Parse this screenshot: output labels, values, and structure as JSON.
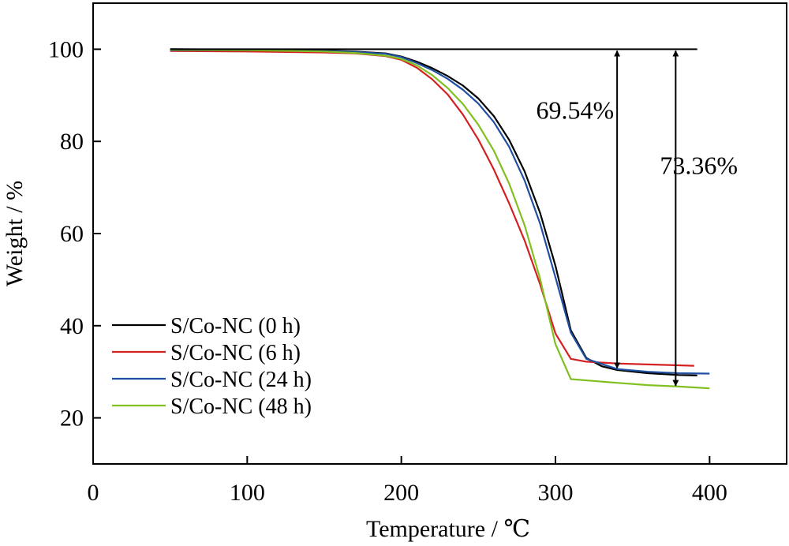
{
  "chart_data": {
    "type": "line",
    "xlabel": "Temperature / ℃",
    "ylabel": "Weight / %",
    "xlim": [
      0,
      450
    ],
    "ylim": [
      10,
      110
    ],
    "xticks": [
      0,
      100,
      200,
      300,
      400
    ],
    "yticks": [
      20,
      40,
      60,
      80,
      100
    ],
    "grid": false,
    "legend_position": "bottom-left",
    "reference_line": {
      "y": 100,
      "x_start": 50,
      "x_end": 392,
      "color": "#000000"
    },
    "series": [
      {
        "name": "S/Co-NC (0 h)",
        "color": "#000000",
        "x": [
          50,
          100,
          150,
          170,
          190,
          200,
          210,
          220,
          230,
          240,
          250,
          260,
          270,
          280,
          290,
          300,
          305,
          310,
          320,
          330,
          340,
          360,
          380,
          392
        ],
        "y": [
          100,
          99.9,
          99.7,
          99.5,
          99.1,
          98.4,
          97.3,
          95.9,
          94.2,
          92.1,
          89.3,
          85.5,
          80.3,
          73.5,
          64.5,
          53,
          46,
          39,
          33,
          31.2,
          30.4,
          29.7,
          29.3,
          29.2
        ]
      },
      {
        "name": "S/Co-NC (6 h)",
        "color": "#d42020",
        "x": [
          50,
          100,
          150,
          170,
          190,
          200,
          210,
          220,
          230,
          240,
          250,
          260,
          270,
          280,
          290,
          300,
          310,
          320,
          340,
          360,
          380,
          390
        ],
        "y": [
          99.6,
          99.5,
          99.3,
          99.1,
          98.5,
          97.7,
          96,
          93.5,
          90.2,
          85.8,
          80.4,
          73.9,
          66.5,
          58.5,
          49,
          38.3,
          32.8,
          32.2,
          31.8,
          31.6,
          31.4,
          31.3
        ]
      },
      {
        "name": "S/Co-NC (24 h)",
        "color": "#1f4fa0",
        "x": [
          50,
          100,
          150,
          170,
          190,
          200,
          210,
          220,
          230,
          240,
          250,
          260,
          270,
          280,
          290,
          300,
          310,
          320,
          340,
          360,
          380,
          400
        ],
        "y": [
          99.8,
          99.8,
          99.6,
          99.4,
          99,
          98.3,
          97,
          95.5,
          93.6,
          91.2,
          88.2,
          84.2,
          78.8,
          71.5,
          62.2,
          50.5,
          38.5,
          32.8,
          30.6,
          30,
          29.7,
          29.6
        ]
      },
      {
        "name": "S/Co-NC (48 h)",
        "color": "#80c020",
        "x": [
          50,
          100,
          150,
          170,
          190,
          200,
          210,
          220,
          230,
          240,
          250,
          260,
          270,
          280,
          290,
          300,
          310,
          340,
          360,
          380,
          400
        ],
        "y": [
          99.9,
          99.8,
          99.5,
          99.2,
          98.6,
          97.9,
          96.5,
          94.4,
          91.6,
          88.1,
          83.6,
          78,
          70.8,
          61.8,
          50.2,
          36,
          28.4,
          27.6,
          27.1,
          26.8,
          26.4
        ]
      }
    ],
    "annotations": [
      {
        "label": "69.54%",
        "x": 340,
        "y_top": 100,
        "y_bottom": 30.46
      },
      {
        "label": "73.36%",
        "x": 378,
        "y_top": 100,
        "y_bottom": 26.64
      }
    ]
  }
}
